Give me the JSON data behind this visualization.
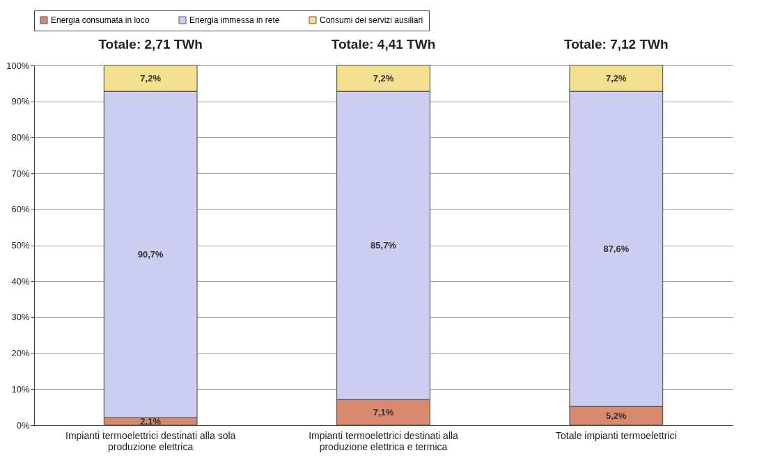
{
  "chart_data": {
    "type": "bar",
    "stacked": true,
    "categories": [
      "Impianti termoelettrici destinati alla sola produzione elettrica",
      "Impianti termoelettrici destinati alla produzione elettrica e termica",
      "Totale impianti termoelettrici"
    ],
    "series": [
      {
        "name": "Energia consumata in loco",
        "color": "#d98a6e",
        "values": [
          2.1,
          7.1,
          5.2
        ],
        "value_labels": [
          "2,1%",
          "7,1%",
          "5,2%"
        ]
      },
      {
        "name": "Energia immessa in rete",
        "color": "#cdcdf2",
        "values": [
          90.7,
          85.7,
          87.6
        ],
        "value_labels": [
          "90,7%",
          "85,7%",
          "87,6%"
        ]
      },
      {
        "name": "Consumi dei servizi ausiliari",
        "color": "#f2e08e",
        "values": [
          7.2,
          7.2,
          7.2
        ],
        "value_labels": [
          "7,2%",
          "7,2%",
          "7,2%"
        ]
      }
    ],
    "annotations": [
      "Totale: 2,71 TWh",
      "Totale: 4,41 TWh",
      "Totale: 7,12 TWh"
    ],
    "ylim": [
      0,
      100
    ],
    "yticks": [
      {
        "value": 0,
        "label": "0%"
      },
      {
        "value": 10,
        "label": "10%"
      },
      {
        "value": 20,
        "label": "20%"
      },
      {
        "value": 30,
        "label": "30%"
      },
      {
        "value": 40,
        "label": "40%"
      },
      {
        "value": 50,
        "label": "50%"
      },
      {
        "value": 60,
        "label": "60%"
      },
      {
        "value": 70,
        "label": "70%"
      },
      {
        "value": 80,
        "label": "80%"
      },
      {
        "value": 90,
        "label": "90%"
      },
      {
        "value": 100,
        "label": "100%"
      }
    ],
    "grid": "y",
    "legend": "top"
  }
}
